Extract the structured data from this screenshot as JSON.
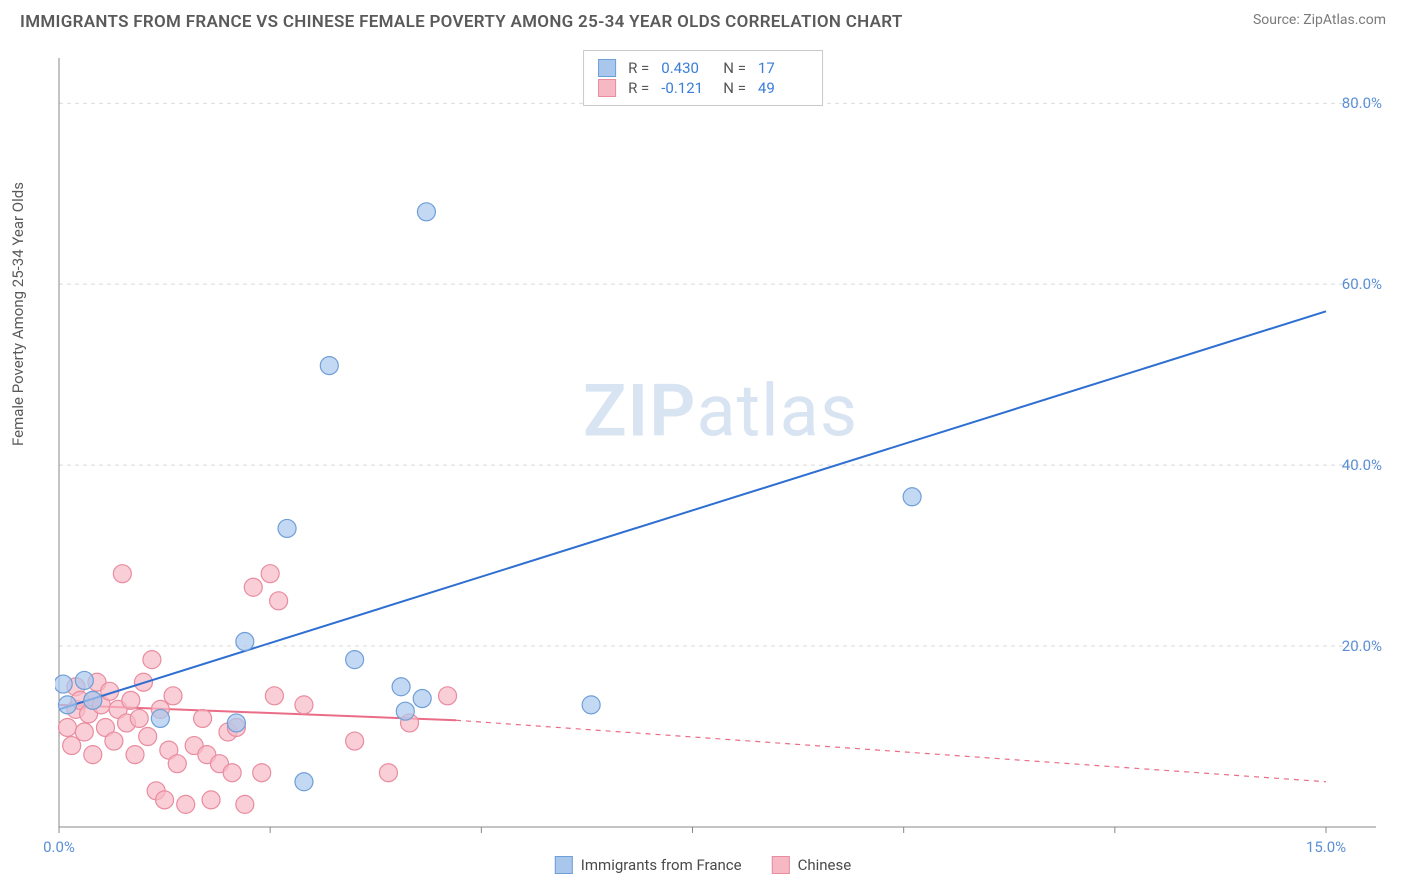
{
  "title": "IMMIGRANTS FROM FRANCE VS CHINESE FEMALE POVERTY AMONG 25-34 YEAR OLDS CORRELATION CHART",
  "source": "Source: ZipAtlas.com",
  "watermark_zip": "ZIP",
  "watermark_atlas": "atlas",
  "y_axis_label": "Female Poverty Among 25-34 Year Olds",
  "chart": {
    "type": "scatter",
    "background_color": "#ffffff",
    "grid_color": "#d9d9d9",
    "axis_color": "#888888",
    "xlim": [
      0,
      15
    ],
    "ylim": [
      0,
      85
    ],
    "xticks": [
      0,
      15
    ],
    "xtick_labels": [
      "0.0%",
      "15.0%"
    ],
    "yticks": [
      20,
      40,
      60,
      80
    ],
    "ytick_labels": [
      "20.0%",
      "40.0%",
      "60.0%",
      "80.0%"
    ],
    "marker_radius": 9,
    "marker_stroke_width": 1.2,
    "line_width": 2,
    "series": [
      {
        "name": "Immigrants from France",
        "color_fill": "#a9c7ec",
        "color_stroke": "#6f9fd8",
        "line_color": "#2e6fd1",
        "r_label": "R =",
        "r_value": "0.430",
        "n_label": "N =",
        "n_value": "17",
        "trend": {
          "x1": 0,
          "y1": 13,
          "x2": 15,
          "y2": 57,
          "dashed": false
        },
        "points": [
          [
            0.05,
            15.8
          ],
          [
            0.1,
            13.5
          ],
          [
            0.3,
            16.2
          ],
          [
            0.4,
            14.0
          ],
          [
            1.2,
            12.0
          ],
          [
            2.1,
            11.5
          ],
          [
            2.2,
            20.5
          ],
          [
            2.7,
            33.0
          ],
          [
            2.9,
            5.0
          ],
          [
            3.2,
            51.0
          ],
          [
            3.5,
            18.5
          ],
          [
            4.05,
            15.5
          ],
          [
            4.1,
            12.8
          ],
          [
            4.3,
            14.2
          ],
          [
            4.35,
            68.0
          ],
          [
            6.3,
            13.5
          ],
          [
            10.1,
            36.5
          ]
        ]
      },
      {
        "name": "Chinese",
        "color_fill": "#f6b9c4",
        "color_stroke": "#e98ca0",
        "line_color": "#ea6d88",
        "r_label": "R =",
        "r_value": "-0.121",
        "n_label": "N =",
        "n_value": "49",
        "trend": {
          "x1": 0,
          "y1": 13.5,
          "x2": 4.7,
          "y2": 11.8,
          "dashed": false
        },
        "trend_ext": {
          "x1": 4.7,
          "y1": 11.8,
          "x2": 15,
          "y2": 5.0,
          "dashed": true
        },
        "points": [
          [
            0.1,
            11.0
          ],
          [
            0.15,
            9.0
          ],
          [
            0.2,
            13.0
          ],
          [
            0.2,
            15.5
          ],
          [
            0.25,
            14.0
          ],
          [
            0.3,
            10.5
          ],
          [
            0.35,
            12.5
          ],
          [
            0.4,
            14.0
          ],
          [
            0.4,
            8.0
          ],
          [
            0.45,
            16.0
          ],
          [
            0.5,
            13.5
          ],
          [
            0.55,
            11.0
          ],
          [
            0.6,
            15.0
          ],
          [
            0.65,
            9.5
          ],
          [
            0.7,
            13.0
          ],
          [
            0.75,
            28.0
          ],
          [
            0.8,
            11.5
          ],
          [
            0.85,
            14.0
          ],
          [
            0.9,
            8.0
          ],
          [
            0.95,
            12.0
          ],
          [
            1.0,
            16.0
          ],
          [
            1.05,
            10.0
          ],
          [
            1.1,
            18.5
          ],
          [
            1.15,
            4.0
          ],
          [
            1.2,
            13.0
          ],
          [
            1.25,
            3.0
          ],
          [
            1.3,
            8.5
          ],
          [
            1.35,
            14.5
          ],
          [
            1.4,
            7.0
          ],
          [
            1.5,
            2.5
          ],
          [
            1.6,
            9.0
          ],
          [
            1.7,
            12.0
          ],
          [
            1.75,
            8.0
          ],
          [
            1.8,
            3.0
          ],
          [
            1.9,
            7.0
          ],
          [
            2.0,
            10.5
          ],
          [
            2.05,
            6.0
          ],
          [
            2.1,
            11.0
          ],
          [
            2.2,
            2.5
          ],
          [
            2.3,
            26.5
          ],
          [
            2.4,
            6.0
          ],
          [
            2.5,
            28.0
          ],
          [
            2.55,
            14.5
          ],
          [
            2.6,
            25.0
          ],
          [
            2.9,
            13.5
          ],
          [
            3.5,
            9.5
          ],
          [
            3.9,
            6.0
          ],
          [
            4.15,
            11.5
          ],
          [
            4.6,
            14.5
          ]
        ]
      }
    ]
  },
  "x_legend": [
    {
      "label": "Immigrants from France",
      "fill": "#a9c7ec",
      "stroke": "#6f9fd8"
    },
    {
      "label": "Chinese",
      "fill": "#f6b9c4",
      "stroke": "#e98ca0"
    }
  ]
}
